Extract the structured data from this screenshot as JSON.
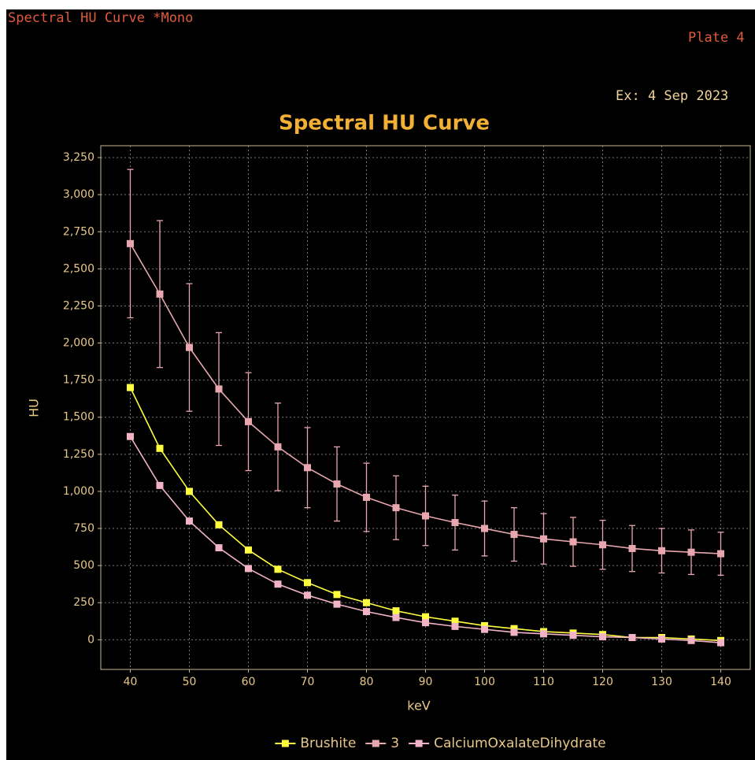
{
  "header": {
    "app_title": "Spectral HU Curve *Mono",
    "plate": "Plate 4",
    "exam": "Ex: 4 Sep 2023"
  },
  "chart_data": {
    "type": "line",
    "title": "Spectral HU Curve",
    "x_label": "keV",
    "y_label": "HU",
    "x": [
      40,
      45,
      50,
      55,
      60,
      65,
      70,
      75,
      80,
      85,
      90,
      95,
      100,
      105,
      110,
      115,
      120,
      125,
      130,
      135,
      140
    ],
    "series": [
      {
        "name": "Brushite",
        "color": "#ffff40",
        "values": [
          1700,
          1290,
          1000,
          775,
          605,
          475,
          385,
          305,
          250,
          195,
          155,
          125,
          95,
          75,
          55,
          45,
          35,
          15,
          15,
          5,
          -5
        ]
      },
      {
        "name": "3",
        "color": "#e8a6ae",
        "values": [
          2670,
          2330,
          1970,
          1690,
          1470,
          1300,
          1160,
          1050,
          960,
          890,
          835,
          790,
          750,
          710,
          680,
          660,
          640,
          615,
          600,
          590,
          580
        ],
        "errors": [
          500,
          495,
          430,
          380,
          330,
          295,
          270,
          250,
          230,
          215,
          200,
          185,
          185,
          180,
          170,
          165,
          165,
          155,
          150,
          150,
          145
        ]
      },
      {
        "name": "CalciumOxalateDihydrate",
        "color": "#f2b4c4",
        "values": [
          1370,
          1040,
          800,
          620,
          480,
          375,
          300,
          240,
          190,
          150,
          115,
          90,
          70,
          50,
          40,
          30,
          20,
          15,
          5,
          -5,
          -20
        ]
      }
    ],
    "xlim": [
      35,
      145
    ],
    "xticks": [
      40,
      50,
      60,
      70,
      80,
      90,
      100,
      110,
      120,
      130,
      140
    ],
    "ylim": [
      -200,
      3330
    ],
    "yticks": [
      0,
      250,
      500,
      750,
      {
        "value": 1000,
        "label": "1,000"
      },
      {
        "value": 1250,
        "label": "1,250"
      },
      {
        "value": 1500,
        "label": "1,500"
      },
      {
        "value": 1750,
        "label": "1,750"
      },
      {
        "value": 2000,
        "label": "2,000"
      },
      {
        "value": 2250,
        "label": "2,250"
      },
      {
        "value": 2500,
        "label": "2,500"
      },
      {
        "value": 2750,
        "label": "2,750"
      },
      {
        "value": 3000,
        "label": "3,000"
      },
      {
        "value": 3250,
        "label": "3,250"
      }
    ],
    "grid": true,
    "legend": "bottom"
  }
}
